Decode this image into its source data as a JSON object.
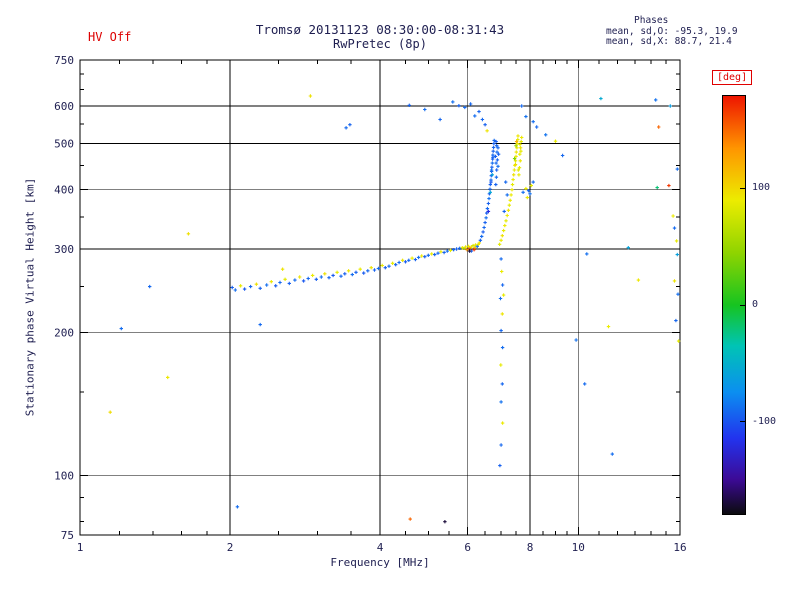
{
  "header": {
    "hv_label": "HV Off",
    "title_line1": "Tromsø 20131123 08:30:00-08:31:43",
    "title_line2": "RwPretec (8p)",
    "stats_title": "Phases",
    "stats_line1": "mean, sd,O: -95.3, 19.9",
    "stats_line2": "mean, sd,X:  88.7, 21.4"
  },
  "colorbar": {
    "unit_label": "[deg]",
    "ticks": [
      100,
      0,
      -100
    ],
    "range": [
      -180,
      180
    ],
    "stops": [
      {
        "v": -180,
        "c": "#0b0b0e"
      },
      {
        "v": -150,
        "c": "#3c0a96"
      },
      {
        "v": -115,
        "c": "#2233ee"
      },
      {
        "v": -75,
        "c": "#0b8ff0"
      },
      {
        "v": -35,
        "c": "#00c4b4"
      },
      {
        "v": 0,
        "c": "#16c420"
      },
      {
        "v": 45,
        "c": "#8fd400"
      },
      {
        "v": 90,
        "c": "#ecec00"
      },
      {
        "v": 135,
        "c": "#ff9500"
      },
      {
        "v": 180,
        "c": "#ee1500"
      }
    ]
  },
  "chart_data": {
    "type": "scatter",
    "title": "Tromsø 20131123 08:30:00-08:31:43",
    "subtitle": "RwPretec (8p)",
    "xlabel": "Frequency [MHz]",
    "ylabel": "Stationary phase Virtual Height [km]",
    "x_scale": "log",
    "y_scale": "log",
    "xlim": [
      1,
      16
    ],
    "ylim": [
      75,
      750
    ],
    "x_ticks": [
      1,
      2,
      4,
      6,
      8,
      10,
      16
    ],
    "x_minor_ticks": [
      1.2,
      1.4,
      1.6,
      1.8,
      2.5,
      3,
      3.5,
      4.5,
      5,
      5.5,
      6.5,
      7,
      7.5,
      8.5,
      9,
      9.5,
      11,
      12,
      13,
      14,
      15
    ],
    "y_ticks": [
      75,
      100,
      200,
      300,
      400,
      500,
      600,
      750
    ],
    "y_minor_ticks": [
      80,
      90,
      150,
      250,
      350,
      450,
      550,
      650,
      700
    ],
    "grid_x": [
      2,
      4,
      6,
      8,
      10
    ],
    "grid_y": [
      100,
      200,
      300,
      400,
      500,
      600
    ],
    "legend": "colorbar maps point color to echo phase in degrees",
    "color_value": "phase_deg",
    "points": [
      [
        2.02,
        249,
        -96
      ],
      [
        2.05,
        246,
        -90
      ],
      [
        2.1,
        251,
        88
      ],
      [
        2.14,
        247,
        -98
      ],
      [
        2.2,
        250,
        -93
      ],
      [
        2.26,
        253,
        96
      ],
      [
        2.3,
        248,
        -95
      ],
      [
        2.37,
        252,
        -89
      ],
      [
        2.42,
        256,
        92
      ],
      [
        2.47,
        251,
        -97
      ],
      [
        2.52,
        255,
        -92
      ],
      [
        2.58,
        259,
        86
      ],
      [
        2.63,
        254,
        -95
      ],
      [
        2.7,
        258,
        -91
      ],
      [
        2.76,
        262,
        94
      ],
      [
        2.81,
        257,
        -99
      ],
      [
        2.87,
        260,
        -93
      ],
      [
        2.93,
        264,
        90
      ],
      [
        2.98,
        259,
        -96
      ],
      [
        3.05,
        262,
        -90
      ],
      [
        3.1,
        266,
        95
      ],
      [
        3.16,
        261,
        -94
      ],
      [
        3.22,
        264,
        -98
      ],
      [
        3.28,
        268,
        87
      ],
      [
        3.34,
        263,
        -92
      ],
      [
        3.4,
        266,
        -96
      ],
      [
        3.46,
        270,
        93
      ],
      [
        3.52,
        265,
        -90
      ],
      [
        3.58,
        268,
        -95
      ],
      [
        3.65,
        272,
        89
      ],
      [
        3.71,
        267,
        -97
      ],
      [
        3.78,
        270,
        -92
      ],
      [
        3.84,
        274,
        95
      ],
      [
        3.9,
        271,
        -94
      ],
      [
        3.97,
        273,
        -90
      ],
      [
        4.04,
        277,
        91
      ],
      [
        4.1,
        274,
        -96
      ],
      [
        4.17,
        276,
        -92
      ],
      [
        4.24,
        280,
        88
      ],
      [
        4.3,
        278,
        -95
      ],
      [
        4.37,
        281,
        -91
      ],
      [
        4.44,
        284,
        93
      ],
      [
        4.5,
        282,
        -97
      ],
      [
        4.57,
        284,
        -92
      ],
      [
        4.64,
        287,
        90
      ],
      [
        4.71,
        285,
        -94
      ],
      [
        4.78,
        288,
        -90
      ],
      [
        4.85,
        290,
        92
      ],
      [
        4.92,
        289,
        -96
      ],
      [
        5.0,
        291,
        -91
      ],
      [
        5.08,
        293,
        89
      ],
      [
        5.15,
        292,
        -95
      ],
      [
        5.23,
        294,
        -92
      ],
      [
        5.3,
        296,
        91
      ],
      [
        5.38,
        295,
        -94
      ],
      [
        5.46,
        297,
        -90
      ],
      [
        5.54,
        298,
        88
      ],
      [
        5.62,
        299,
        -93
      ],
      [
        5.7,
        300,
        -95
      ],
      [
        5.78,
        301,
        -91
      ],
      [
        5.85,
        302,
        90
      ],
      [
        5.9,
        301,
        65
      ],
      [
        5.94,
        303,
        95
      ],
      [
        5.98,
        299,
        135
      ],
      [
        6.02,
        304,
        88
      ],
      [
        6.06,
        301,
        160
      ],
      [
        6.1,
        303,
        100
      ],
      [
        6.1,
        297,
        -95
      ],
      [
        6.15,
        305,
        78
      ],
      [
        6.2,
        302,
        110
      ],
      [
        6.22,
        306,
        92
      ],
      [
        6.27,
        304,
        -90
      ],
      [
        6.3,
        307,
        84
      ],
      [
        6.33,
        309,
        96
      ],
      [
        6.18,
        299,
        172
      ],
      [
        6.05,
        297,
        -170
      ],
      [
        6.36,
        313,
        -95
      ],
      [
        6.4,
        319,
        -91
      ],
      [
        6.44,
        326,
        -97
      ],
      [
        6.47,
        333,
        -93
      ],
      [
        6.5,
        341,
        -95
      ],
      [
        6.53,
        349,
        -90
      ],
      [
        6.55,
        357,
        -96
      ],
      [
        6.57,
        365,
        -92
      ],
      [
        6.6,
        374,
        -95
      ],
      [
        6.62,
        383,
        -89
      ],
      [
        6.63,
        392,
        -96
      ],
      [
        6.65,
        401,
        -93
      ],
      [
        6.66,
        410,
        -95
      ],
      [
        6.68,
        419,
        -91
      ],
      [
        6.69,
        428,
        -96
      ],
      [
        6.7,
        437,
        -93
      ],
      [
        6.71,
        446,
        -95
      ],
      [
        6.72,
        455,
        -90
      ],
      [
        6.73,
        464,
        -96
      ],
      [
        6.74,
        473,
        -92
      ],
      [
        6.75,
        482,
        -95
      ],
      [
        6.76,
        491,
        -93
      ],
      [
        6.77,
        500,
        -96
      ],
      [
        6.78,
        508,
        -91
      ],
      [
        6.72,
        430,
        -60
      ],
      [
        6.66,
        395,
        -58
      ],
      [
        6.6,
        360,
        -120
      ],
      [
        6.68,
        415,
        -98
      ],
      [
        6.74,
        468,
        -94
      ],
      [
        6.7,
        440,
        -88
      ],
      [
        6.82,
        470,
        -95
      ],
      [
        6.84,
        455,
        -92
      ],
      [
        6.86,
        440,
        -96
      ],
      [
        6.85,
        425,
        -90
      ],
      [
        6.83,
        410,
        -94
      ],
      [
        6.87,
        480,
        -91
      ],
      [
        6.88,
        462,
        -95
      ],
      [
        6.9,
        448,
        -89
      ],
      [
        6.86,
        495,
        -93
      ],
      [
        6.84,
        505,
        -96
      ],
      [
        6.9,
        490,
        -92
      ],
      [
        6.92,
        475,
        -95
      ],
      [
        6.95,
        307,
        86
      ],
      [
        7.0,
        313,
        91
      ],
      [
        7.04,
        320,
        95
      ],
      [
        7.08,
        328,
        88
      ],
      [
        7.12,
        336,
        92
      ],
      [
        7.16,
        344,
        85
      ],
      [
        7.2,
        353,
        90
      ],
      [
        7.24,
        362,
        94
      ],
      [
        7.27,
        371,
        87
      ],
      [
        7.3,
        380,
        92
      ],
      [
        7.33,
        390,
        89
      ],
      [
        7.36,
        400,
        93
      ],
      [
        7.38,
        410,
        86
      ],
      [
        7.4,
        420,
        91
      ],
      [
        7.42,
        430,
        95
      ],
      [
        7.44,
        440,
        88
      ],
      [
        7.46,
        450,
        92
      ],
      [
        7.48,
        460,
        85
      ],
      [
        7.5,
        470,
        90
      ],
      [
        7.51,
        480,
        94
      ],
      [
        7.53,
        490,
        87
      ],
      [
        7.54,
        500,
        91
      ],
      [
        7.56,
        510,
        89
      ],
      [
        7.57,
        519,
        93
      ],
      [
        7.45,
        465,
        40
      ],
      [
        7.5,
        495,
        55
      ],
      [
        7.52,
        505,
        120
      ],
      [
        7.48,
        452,
        98
      ],
      [
        7.6,
        430,
        90
      ],
      [
        7.62,
        445,
        86
      ],
      [
        7.65,
        460,
        93
      ],
      [
        7.63,
        475,
        89
      ],
      [
        7.66,
        490,
        95
      ],
      [
        7.68,
        505,
        88
      ],
      [
        7.7,
        515,
        92
      ],
      [
        7.58,
        440,
        84
      ],
      [
        7.64,
        498,
        91
      ],
      [
        7.67,
        482,
        87
      ],
      [
        7.75,
        395,
        -90
      ],
      [
        7.85,
        402,
        88
      ],
      [
        7.95,
        398,
        -93
      ],
      [
        8.05,
        408,
        86
      ],
      [
        8.12,
        415,
        -91
      ],
      [
        7.9,
        385,
        92
      ],
      [
        8.0,
        392,
        -88
      ],
      [
        7.15,
        415,
        -92
      ],
      [
        7.2,
        390,
        -90
      ],
      [
        7.1,
        360,
        -94
      ],
      [
        4.58,
        602,
        -94
      ],
      [
        4.92,
        590,
        -90
      ],
      [
        5.28,
        562,
        -93
      ],
      [
        5.6,
        612,
        -89
      ],
      [
        5.76,
        601,
        -95
      ],
      [
        5.92,
        596,
        -91
      ],
      [
        6.08,
        606,
        -93
      ],
      [
        6.2,
        572,
        -90
      ],
      [
        6.32,
        584,
        -94
      ],
      [
        6.42,
        562,
        -92
      ],
      [
        6.5,
        548,
        -95
      ],
      [
        6.56,
        532,
        94
      ],
      [
        3.42,
        540,
        -91
      ],
      [
        3.48,
        548,
        -94
      ],
      [
        2.9,
        630,
        95
      ],
      [
        7.7,
        600,
        -92
      ],
      [
        7.85,
        570,
        -88
      ],
      [
        8.25,
        542,
        -93
      ],
      [
        8.6,
        522,
        -87
      ],
      [
        9.0,
        506,
        89
      ],
      [
        9.3,
        472,
        -92
      ],
      [
        8.12,
        556,
        -90
      ],
      [
        11.1,
        622,
        -55
      ],
      [
        14.3,
        618,
        -88
      ],
      [
        14.5,
        542,
        152
      ],
      [
        15.3,
        600,
        -65
      ],
      [
        15.2,
        408,
        168
      ],
      [
        7.0,
        286,
        -91
      ],
      [
        7.02,
        269,
        90
      ],
      [
        7.05,
        252,
        -93
      ],
      [
        6.98,
        236,
        -89
      ],
      [
        7.04,
        219,
        94
      ],
      [
        7.0,
        202,
        -92
      ],
      [
        7.05,
        186,
        -90
      ],
      [
        6.99,
        171,
        87
      ],
      [
        7.04,
        156,
        -93
      ],
      [
        7.0,
        143,
        -88
      ],
      [
        7.05,
        129,
        91
      ],
      [
        7.0,
        116,
        -92
      ],
      [
        6.96,
        105,
        -95
      ],
      [
        7.08,
        240,
        88
      ],
      [
        1.15,
        136,
        98
      ],
      [
        1.5,
        161,
        92
      ],
      [
        1.38,
        250,
        -92
      ],
      [
        1.65,
        323,
        96
      ],
      [
        1.21,
        204,
        -90
      ],
      [
        2.3,
        208,
        -91
      ],
      [
        2.55,
        272,
        94
      ],
      [
        2.07,
        86,
        -90
      ],
      [
        4.6,
        81,
        152
      ],
      [
        5.4,
        80,
        -170
      ],
      [
        10.4,
        293,
        -89
      ],
      [
        10.3,
        156,
        -91
      ],
      [
        9.9,
        193,
        -88
      ],
      [
        11.5,
        206,
        90
      ],
      [
        11.7,
        111,
        -90
      ],
      [
        12.6,
        302,
        -60
      ],
      [
        13.2,
        258,
        92
      ],
      [
        14.4,
        404,
        -20
      ],
      [
        15.6,
        332,
        -91
      ],
      [
        15.75,
        312,
        88
      ],
      [
        15.8,
        292,
        -62
      ],
      [
        15.6,
        257,
        94
      ],
      [
        15.85,
        241,
        -89
      ],
      [
        15.7,
        212,
        -93
      ],
      [
        15.9,
        192,
        86
      ],
      [
        15.8,
        442,
        -90
      ],
      [
        15.5,
        352,
        90
      ]
    ]
  }
}
